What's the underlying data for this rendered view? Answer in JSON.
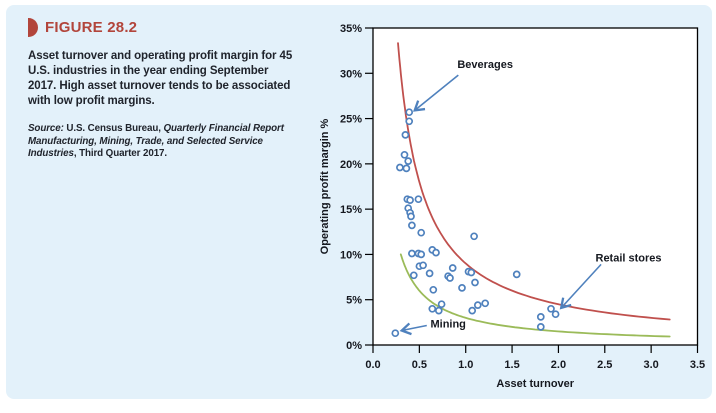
{
  "figure": {
    "label": "FIGURE 28.2",
    "caption": "Asset turnover and operating profit margin for 45 U.S. industries in the year ending September 2017. High asset turnover tends to be associated with low profit margins.",
    "source_prefix": "Source:",
    "source_text1": " U.S. Census Bureau, ",
    "source_italic": "Quarterly Financial Report Manufacturing, Mining, Trade, and Selected Service Industries",
    "source_text2": ", Third Quarter 2017."
  },
  "colors": {
    "panel_bg": "#e3f1fa",
    "accent_red": "#b2453b",
    "curve_red": "#c0504d",
    "curve_green": "#9bbb59",
    "marker_blue": "#4f81bd",
    "text_dark": "#20242c"
  },
  "chart_data": {
    "type": "scatter",
    "title": "",
    "xlabel": "Asset turnover",
    "ylabel": "Operating profit margin %",
    "xlim": [
      0,
      3.5
    ],
    "ylim": [
      0,
      35
    ],
    "grid": false,
    "x_ticks": [
      0.0,
      0.5,
      1.0,
      1.5,
      2.0,
      2.5,
      3.0,
      3.5
    ],
    "x_tick_labels": [
      "0.0",
      "0.5",
      "1.0",
      "1.5",
      "2.0",
      "2.5",
      "3.0",
      "3.5"
    ],
    "y_ticks": [
      0,
      5,
      10,
      15,
      20,
      25,
      30,
      35
    ],
    "y_tick_labels": [
      "0%",
      "5%",
      "10%",
      "15%",
      "20%",
      "25%",
      "30%",
      "35%"
    ],
    "points": [
      [
        0.39,
        25.7
      ],
      [
        0.39,
        24.7
      ],
      [
        0.35,
        23.2
      ],
      [
        0.34,
        21.0
      ],
      [
        0.38,
        20.3
      ],
      [
        0.29,
        19.6
      ],
      [
        0.36,
        19.5
      ],
      [
        0.37,
        16.1
      ],
      [
        0.4,
        16.0
      ],
      [
        0.49,
        16.1
      ],
      [
        0.38,
        15.1
      ],
      [
        0.4,
        14.6
      ],
      [
        0.41,
        14.2
      ],
      [
        0.42,
        13.2
      ],
      [
        0.52,
        12.4
      ],
      [
        1.09,
        12.0
      ],
      [
        0.42,
        10.1
      ],
      [
        0.49,
        10.1
      ],
      [
        0.52,
        10.0
      ],
      [
        0.64,
        10.5
      ],
      [
        0.68,
        10.2
      ],
      [
        0.5,
        8.7
      ],
      [
        0.54,
        8.8
      ],
      [
        0.44,
        7.7
      ],
      [
        0.61,
        7.9
      ],
      [
        0.86,
        8.5
      ],
      [
        0.81,
        7.6
      ],
      [
        0.83,
        7.4
      ],
      [
        1.03,
        8.1
      ],
      [
        1.06,
        8.0
      ],
      [
        1.1,
        6.9
      ],
      [
        0.96,
        6.3
      ],
      [
        0.65,
        6.1
      ],
      [
        0.74,
        4.5
      ],
      [
        0.64,
        4.0
      ],
      [
        0.71,
        3.8
      ],
      [
        1.07,
        3.8
      ],
      [
        1.13,
        4.4
      ],
      [
        1.21,
        4.6
      ],
      [
        1.55,
        7.8
      ],
      [
        1.81,
        3.1
      ],
      [
        1.92,
        4.0
      ],
      [
        1.97,
        3.4
      ],
      [
        1.81,
        2.0
      ],
      [
        0.24,
        1.3
      ]
    ],
    "curves": [
      {
        "name": "upper-envelope",
        "color_key": "curve_red",
        "equation": "y = 9 / x",
        "k": 9,
        "x_start": 0.27,
        "x_end": 3.2
      },
      {
        "name": "lower-envelope",
        "color_key": "curve_green",
        "equation": "y = 3 / x",
        "k": 3,
        "x_start": 0.3,
        "x_end": 3.2
      }
    ],
    "annotations": [
      {
        "label": "Beverages",
        "point": [
          0.39,
          25.7
        ],
        "text_at": [
          0.91,
          30.6
        ],
        "arrow_from": [
          0.92,
          29.8
        ],
        "arrow_to": [
          0.45,
          25.9
        ]
      },
      {
        "label": "Retail stores",
        "point": [
          1.97,
          3.4
        ],
        "text_at": [
          2.4,
          9.2
        ],
        "arrow_from": [
          2.46,
          8.9
        ],
        "arrow_to": [
          2.03,
          4.1
        ]
      },
      {
        "label": "Mining",
        "point": [
          0.24,
          1.3
        ],
        "text_at": [
          0.62,
          1.95
        ],
        "arrow_from": [
          0.58,
          2.15
        ],
        "arrow_to": [
          0.31,
          1.6
        ]
      }
    ]
  }
}
